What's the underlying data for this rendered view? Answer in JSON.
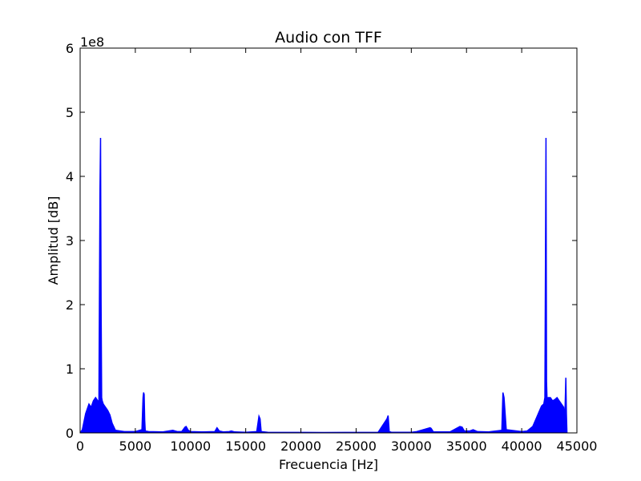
{
  "chart_data": {
    "type": "line",
    "title": "Audio con TFF",
    "xlabel": "Frecuencia [Hz]",
    "ylabel": "Amplitud [dB]",
    "xlim": [
      0,
      45000
    ],
    "ylim": [
      0,
      600000000
    ],
    "y_offset_label": "1e8",
    "xticks": [
      0,
      5000,
      10000,
      15000,
      20000,
      25000,
      30000,
      35000,
      40000,
      45000
    ],
    "xtick_labels": [
      "0",
      "5000",
      "10000",
      "15000",
      "20000",
      "25000",
      "30000",
      "35000",
      "40000",
      "45000"
    ],
    "yticks": [
      0,
      100000000,
      200000000,
      300000000,
      400000000,
      500000000,
      600000000
    ],
    "ytick_labels": [
      "0",
      "1",
      "2",
      "3",
      "4",
      "5",
      "6"
    ],
    "grid": false,
    "series_color": "#0000ff",
    "series": [
      {
        "name": "",
        "x": [
          0,
          200,
          500,
          800,
          1000,
          1200,
          1400,
          1600,
          1700,
          1800,
          1850,
          1900,
          1950,
          2000,
          2100,
          2300,
          2500,
          2700,
          2900,
          3200,
          4000,
          5000,
          5600,
          5700,
          5750,
          5800,
          5850,
          5900,
          6200,
          7500,
          8400,
          8600,
          8800,
          9200,
          9500,
          9600,
          9800,
          10000,
          11000,
          12200,
          12400,
          12600,
          13000,
          13500,
          13700,
          14000,
          15000,
          16000,
          16200,
          16300,
          16400,
          17000,
          20000,
          22050,
          24000,
          27000,
          27800,
          27900,
          28000,
          28200,
          30000,
          30500,
          31700,
          31800,
          32000,
          33500,
          34400,
          34600,
          34800,
          35300,
          35600,
          36000,
          37000,
          38200,
          38300,
          38400,
          38600,
          40000,
          40500,
          41000,
          41500,
          41800,
          42000,
          42100,
          42200,
          42250,
          42300,
          42400,
          42600,
          42800,
          43000,
          43200,
          43400,
          43600,
          43800,
          43900,
          44000,
          44050,
          44100
        ],
        "y": [
          0,
          5000000,
          30000000,
          45000000,
          40000000,
          50000000,
          55000000,
          50000000,
          45000000,
          380000000,
          460000000,
          200000000,
          55000000,
          50000000,
          45000000,
          40000000,
          35000000,
          28000000,
          15000000,
          4000000,
          2000000,
          2000000,
          5000000,
          55000000,
          63000000,
          60000000,
          20000000,
          3000000,
          2000000,
          1500000,
          4000000,
          3000000,
          2000000,
          2000000,
          9000000,
          10000000,
          4000000,
          2000000,
          1500000,
          2000000,
          8000000,
          3000000,
          1500000,
          2000000,
          3000000,
          1500000,
          1000000,
          2000000,
          26000000,
          22000000,
          2000000,
          1000000,
          800000,
          700000,
          800000,
          1000000,
          22000000,
          27000000,
          2000000,
          1000000,
          1000000,
          2000000,
          8000000,
          7000000,
          1500000,
          1500000,
          10000000,
          9000000,
          3000000,
          3000000,
          5000000,
          2000000,
          1500000,
          4000000,
          63000000,
          55000000,
          5000000,
          2000000,
          3000000,
          10000000,
          30000000,
          42000000,
          45000000,
          55000000,
          460000000,
          80000000,
          50000000,
          55000000,
          55000000,
          50000000,
          52000000,
          55000000,
          50000000,
          45000000,
          40000000,
          20000000,
          86000000,
          30000000,
          0
        ]
      }
    ]
  }
}
